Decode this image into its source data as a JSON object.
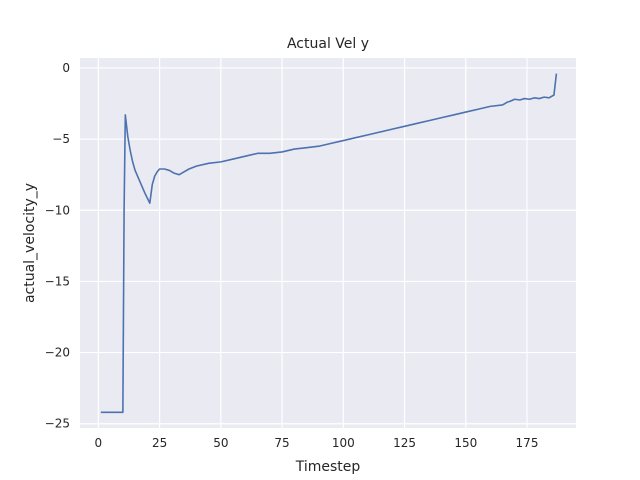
{
  "chart_data": {
    "type": "line",
    "title": "Actual Vel y",
    "xlabel": "Timestep",
    "ylabel": "actual_velocity_y",
    "xlim": [
      -7.5,
      195
    ],
    "ylim": [
      -25.3,
      0.7
    ],
    "xticks": [
      0,
      25,
      50,
      75,
      100,
      125,
      150,
      175
    ],
    "yticks": [
      0,
      -5,
      -10,
      -15,
      -20,
      -25
    ],
    "xtick_labels": [
      "0",
      "25",
      "50",
      "75",
      "100",
      "125",
      "150",
      "175"
    ],
    "ytick_labels": [
      "0",
      "−5",
      "−10",
      "−15",
      "−20",
      "−25"
    ],
    "grid": true,
    "colors": {
      "background": "#EAEAF2",
      "grid": "#FFFFFF",
      "line": "#4C72B0"
    },
    "series": [
      {
        "x": [
          1,
          9.5,
          10,
          10.5,
          11,
          12,
          13,
          14,
          15,
          17,
          19,
          21,
          22,
          23,
          24,
          25,
          27,
          29,
          31,
          33,
          35,
          37,
          40,
          45,
          50,
          55,
          60,
          65,
          70,
          75,
          80,
          85,
          90,
          95,
          100,
          105,
          110,
          115,
          120,
          125,
          130,
          135,
          140,
          145,
          150,
          155,
          160,
          165,
          166,
          167,
          168,
          170,
          172,
          174,
          176,
          178,
          180,
          182,
          184,
          185,
          186,
          187
        ],
        "y": [
          -24.2,
          -24.2,
          -24.2,
          -10.0,
          -3.3,
          -4.8,
          -5.8,
          -6.6,
          -7.2,
          -8.0,
          -8.8,
          -9.5,
          -8.2,
          -7.6,
          -7.3,
          -7.1,
          -7.1,
          -7.2,
          -7.4,
          -7.5,
          -7.3,
          -7.1,
          -6.9,
          -6.7,
          -6.6,
          -6.4,
          -6.2,
          -6.0,
          -6.0,
          -5.9,
          -5.7,
          -5.6,
          -5.5,
          -5.3,
          -5.1,
          -4.9,
          -4.7,
          -4.5,
          -4.3,
          -4.1,
          -3.9,
          -3.7,
          -3.5,
          -3.3,
          -3.1,
          -2.9,
          -2.7,
          -2.6,
          -2.5,
          -2.4,
          -2.35,
          -2.2,
          -2.25,
          -2.15,
          -2.2,
          -2.1,
          -2.15,
          -2.05,
          -2.1,
          -2.0,
          -1.9,
          -0.4
        ]
      }
    ]
  }
}
